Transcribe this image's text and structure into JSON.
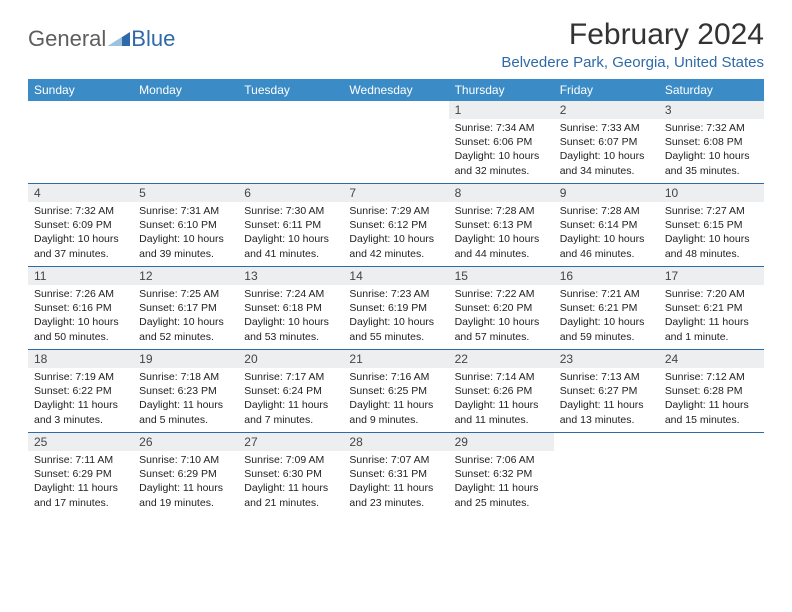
{
  "logo": {
    "text1": "General",
    "text2": "Blue"
  },
  "title": "February 2024",
  "location": "Belvedere Park, Georgia, United States",
  "colors": {
    "header_bg": "#3b8bc6",
    "header_text": "#ffffff",
    "accent": "#2f6aa8",
    "daynum_bg": "#eceef0",
    "text": "#222222",
    "logo_gray": "#5e5e5e"
  },
  "day_names": [
    "Sunday",
    "Monday",
    "Tuesday",
    "Wednesday",
    "Thursday",
    "Friday",
    "Saturday"
  ],
  "weeks": [
    [
      {
        "day": "",
        "sunrise": "",
        "sunset": "",
        "daylight": ""
      },
      {
        "day": "",
        "sunrise": "",
        "sunset": "",
        "daylight": ""
      },
      {
        "day": "",
        "sunrise": "",
        "sunset": "",
        "daylight": ""
      },
      {
        "day": "",
        "sunrise": "",
        "sunset": "",
        "daylight": ""
      },
      {
        "day": "1",
        "sunrise": "Sunrise: 7:34 AM",
        "sunset": "Sunset: 6:06 PM",
        "daylight": "Daylight: 10 hours and 32 minutes."
      },
      {
        "day": "2",
        "sunrise": "Sunrise: 7:33 AM",
        "sunset": "Sunset: 6:07 PM",
        "daylight": "Daylight: 10 hours and 34 minutes."
      },
      {
        "day": "3",
        "sunrise": "Sunrise: 7:32 AM",
        "sunset": "Sunset: 6:08 PM",
        "daylight": "Daylight: 10 hours and 35 minutes."
      }
    ],
    [
      {
        "day": "4",
        "sunrise": "Sunrise: 7:32 AM",
        "sunset": "Sunset: 6:09 PM",
        "daylight": "Daylight: 10 hours and 37 minutes."
      },
      {
        "day": "5",
        "sunrise": "Sunrise: 7:31 AM",
        "sunset": "Sunset: 6:10 PM",
        "daylight": "Daylight: 10 hours and 39 minutes."
      },
      {
        "day": "6",
        "sunrise": "Sunrise: 7:30 AM",
        "sunset": "Sunset: 6:11 PM",
        "daylight": "Daylight: 10 hours and 41 minutes."
      },
      {
        "day": "7",
        "sunrise": "Sunrise: 7:29 AM",
        "sunset": "Sunset: 6:12 PM",
        "daylight": "Daylight: 10 hours and 42 minutes."
      },
      {
        "day": "8",
        "sunrise": "Sunrise: 7:28 AM",
        "sunset": "Sunset: 6:13 PM",
        "daylight": "Daylight: 10 hours and 44 minutes."
      },
      {
        "day": "9",
        "sunrise": "Sunrise: 7:28 AM",
        "sunset": "Sunset: 6:14 PM",
        "daylight": "Daylight: 10 hours and 46 minutes."
      },
      {
        "day": "10",
        "sunrise": "Sunrise: 7:27 AM",
        "sunset": "Sunset: 6:15 PM",
        "daylight": "Daylight: 10 hours and 48 minutes."
      }
    ],
    [
      {
        "day": "11",
        "sunrise": "Sunrise: 7:26 AM",
        "sunset": "Sunset: 6:16 PM",
        "daylight": "Daylight: 10 hours and 50 minutes."
      },
      {
        "day": "12",
        "sunrise": "Sunrise: 7:25 AM",
        "sunset": "Sunset: 6:17 PM",
        "daylight": "Daylight: 10 hours and 52 minutes."
      },
      {
        "day": "13",
        "sunrise": "Sunrise: 7:24 AM",
        "sunset": "Sunset: 6:18 PM",
        "daylight": "Daylight: 10 hours and 53 minutes."
      },
      {
        "day": "14",
        "sunrise": "Sunrise: 7:23 AM",
        "sunset": "Sunset: 6:19 PM",
        "daylight": "Daylight: 10 hours and 55 minutes."
      },
      {
        "day": "15",
        "sunrise": "Sunrise: 7:22 AM",
        "sunset": "Sunset: 6:20 PM",
        "daylight": "Daylight: 10 hours and 57 minutes."
      },
      {
        "day": "16",
        "sunrise": "Sunrise: 7:21 AM",
        "sunset": "Sunset: 6:21 PM",
        "daylight": "Daylight: 10 hours and 59 minutes."
      },
      {
        "day": "17",
        "sunrise": "Sunrise: 7:20 AM",
        "sunset": "Sunset: 6:21 PM",
        "daylight": "Daylight: 11 hours and 1 minute."
      }
    ],
    [
      {
        "day": "18",
        "sunrise": "Sunrise: 7:19 AM",
        "sunset": "Sunset: 6:22 PM",
        "daylight": "Daylight: 11 hours and 3 minutes."
      },
      {
        "day": "19",
        "sunrise": "Sunrise: 7:18 AM",
        "sunset": "Sunset: 6:23 PM",
        "daylight": "Daylight: 11 hours and 5 minutes."
      },
      {
        "day": "20",
        "sunrise": "Sunrise: 7:17 AM",
        "sunset": "Sunset: 6:24 PM",
        "daylight": "Daylight: 11 hours and 7 minutes."
      },
      {
        "day": "21",
        "sunrise": "Sunrise: 7:16 AM",
        "sunset": "Sunset: 6:25 PM",
        "daylight": "Daylight: 11 hours and 9 minutes."
      },
      {
        "day": "22",
        "sunrise": "Sunrise: 7:14 AM",
        "sunset": "Sunset: 6:26 PM",
        "daylight": "Daylight: 11 hours and 11 minutes."
      },
      {
        "day": "23",
        "sunrise": "Sunrise: 7:13 AM",
        "sunset": "Sunset: 6:27 PM",
        "daylight": "Daylight: 11 hours and 13 minutes."
      },
      {
        "day": "24",
        "sunrise": "Sunrise: 7:12 AM",
        "sunset": "Sunset: 6:28 PM",
        "daylight": "Daylight: 11 hours and 15 minutes."
      }
    ],
    [
      {
        "day": "25",
        "sunrise": "Sunrise: 7:11 AM",
        "sunset": "Sunset: 6:29 PM",
        "daylight": "Daylight: 11 hours and 17 minutes."
      },
      {
        "day": "26",
        "sunrise": "Sunrise: 7:10 AM",
        "sunset": "Sunset: 6:29 PM",
        "daylight": "Daylight: 11 hours and 19 minutes."
      },
      {
        "day": "27",
        "sunrise": "Sunrise: 7:09 AM",
        "sunset": "Sunset: 6:30 PM",
        "daylight": "Daylight: 11 hours and 21 minutes."
      },
      {
        "day": "28",
        "sunrise": "Sunrise: 7:07 AM",
        "sunset": "Sunset: 6:31 PM",
        "daylight": "Daylight: 11 hours and 23 minutes."
      },
      {
        "day": "29",
        "sunrise": "Sunrise: 7:06 AM",
        "sunset": "Sunset: 6:32 PM",
        "daylight": "Daylight: 11 hours and 25 minutes."
      },
      {
        "day": "",
        "sunrise": "",
        "sunset": "",
        "daylight": ""
      },
      {
        "day": "",
        "sunrise": "",
        "sunset": "",
        "daylight": ""
      }
    ]
  ]
}
